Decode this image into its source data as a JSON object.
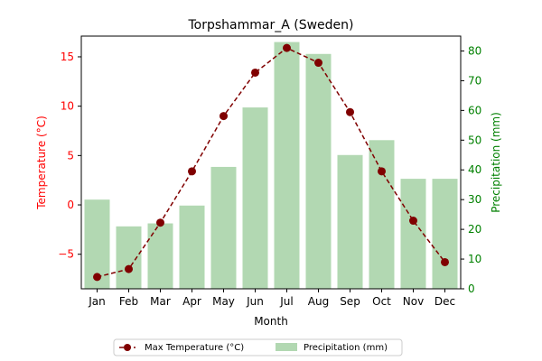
{
  "chart_data": {
    "type": "bar+line",
    "title": "Torpshammar_A (Sweden)",
    "xlabel": "Month",
    "ylabel_left": "Temperature (°C)",
    "ylabel_right": "Precipitation (mm)",
    "categories": [
      "Jan",
      "Feb",
      "Mar",
      "Apr",
      "May",
      "Jun",
      "Jul",
      "Aug",
      "Sep",
      "Oct",
      "Nov",
      "Dec"
    ],
    "ylim_left": [
      -8.5,
      17.1
    ],
    "ylim_right": [
      0,
      85
    ],
    "yticks_left": [
      -5,
      0,
      5,
      10,
      15
    ],
    "yticks_right": [
      0,
      10,
      20,
      30,
      40,
      50,
      60,
      70,
      80
    ],
    "grid": false,
    "legend_placement": "below-center",
    "series": [
      {
        "name": "Max Temperature (°C)",
        "type": "line",
        "axis": "left",
        "color": "#800000",
        "values": [
          -7.3,
          -6.5,
          -1.8,
          3.4,
          9.0,
          13.4,
          15.9,
          14.4,
          9.4,
          3.4,
          -1.6,
          -5.8
        ]
      },
      {
        "name": "Precipitation (mm)",
        "type": "bar",
        "axis": "right",
        "color": "#b2d8b2",
        "values": [
          30,
          21,
          22,
          28,
          41,
          61,
          83,
          79,
          45,
          50,
          37,
          37
        ]
      }
    ],
    "left_axis_color": "#ff0000",
    "right_axis_color": "#008000"
  }
}
